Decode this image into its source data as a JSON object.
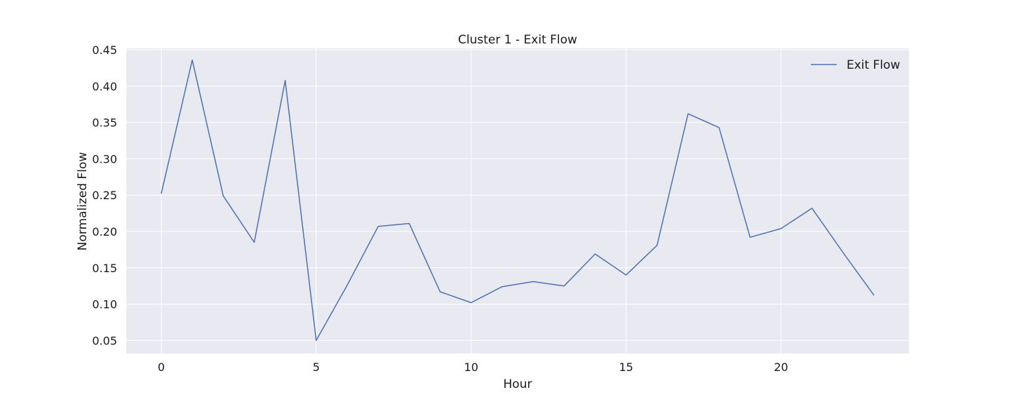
{
  "chart_data": {
    "type": "line",
    "title": "Cluster 1 - Exit Flow",
    "xlabel": "Hour",
    "ylabel": "Normalized Flow",
    "xlim": [
      -1.13,
      24.13
    ],
    "ylim": [
      0.032,
      0.452
    ],
    "x_ticks": [
      0,
      5,
      10,
      15,
      20
    ],
    "x_tick_labels": [
      "0",
      "5",
      "10",
      "15",
      "20"
    ],
    "y_ticks": [
      0.05,
      0.1,
      0.15,
      0.2,
      0.25,
      0.3,
      0.35,
      0.4,
      0.45
    ],
    "y_tick_labels": [
      "0.05",
      "0.10",
      "0.15",
      "0.20",
      "0.25",
      "0.30",
      "0.35",
      "0.40",
      "0.45"
    ],
    "grid": true,
    "legend_position": "top-right",
    "colors": {
      "plot_background": "#e9e9f1",
      "grid": "#ffffff",
      "series": "#4c72b0"
    },
    "series": [
      {
        "name": "Exit Flow",
        "x": [
          0,
          1,
          2,
          3,
          4,
          5,
          6,
          7,
          8,
          9,
          10,
          11,
          12,
          13,
          14,
          15,
          16,
          17,
          18,
          19,
          20,
          21,
          22,
          23
        ],
        "values": [
          0.252,
          0.436,
          0.249,
          0.185,
          0.408,
          0.05,
          0.126,
          0.207,
          0.211,
          0.117,
          0.102,
          0.124,
          0.131,
          0.125,
          0.169,
          0.14,
          0.181,
          0.362,
          0.343,
          0.192,
          0.204,
          0.232,
          0.171,
          0.112
        ]
      }
    ]
  }
}
